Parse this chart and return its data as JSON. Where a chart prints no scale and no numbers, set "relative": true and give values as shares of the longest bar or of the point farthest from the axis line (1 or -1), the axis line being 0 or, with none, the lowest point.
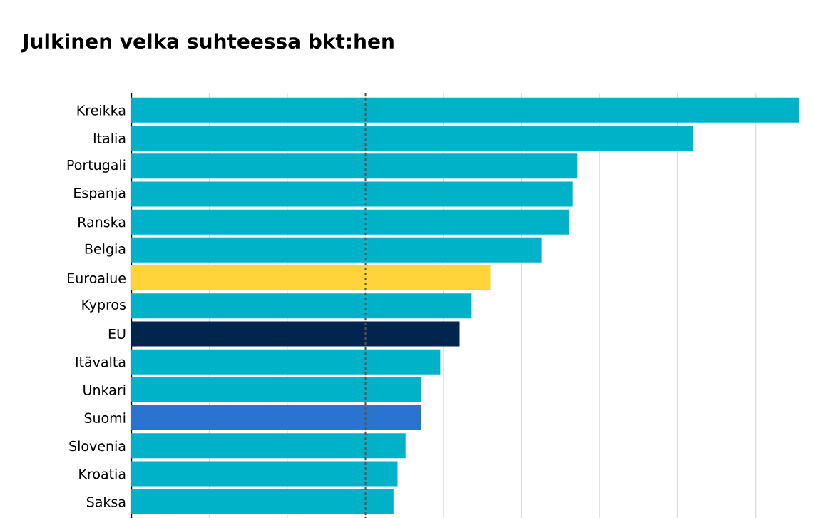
{
  "chart_data": {
    "type": "bar",
    "orientation": "horizontal",
    "relative": true,
    "title": "Julkinen velka suhteessa bkt:hen",
    "categories": [
      "Kreikka",
      "Italia",
      "Portugali",
      "Espanja",
      "Ranska",
      "Belgia",
      "Euroalue",
      "Kypros",
      "EU",
      "Itävalta",
      "Unkari",
      "Suomi",
      "Slovenia",
      "Kroatia",
      "Saksa"
    ],
    "values": [
      1,
      0.842,
      0.668,
      0.661,
      0.656,
      0.615,
      0.538,
      0.51,
      0.492,
      0.463,
      0.434,
      0.434,
      0.411,
      0.399,
      0.393
    ],
    "colors": [
      "#00b2c8",
      "#00b2c8",
      "#00b2c8",
      "#00b2c8",
      "#00b2c8",
      "#00b2c8",
      "#ffd43a",
      "#00b2c8",
      "#00264d",
      "#00b2c8",
      "#00b2c8",
      "#2a74d0",
      "#00b2c8",
      "#00b2c8",
      "#00b2c8"
    ],
    "ref_lines": [
      {
        "axis": "x",
        "value": 0.351,
        "color": "#555555",
        "line_style": "dashed"
      }
    ],
    "grid": "x"
  }
}
